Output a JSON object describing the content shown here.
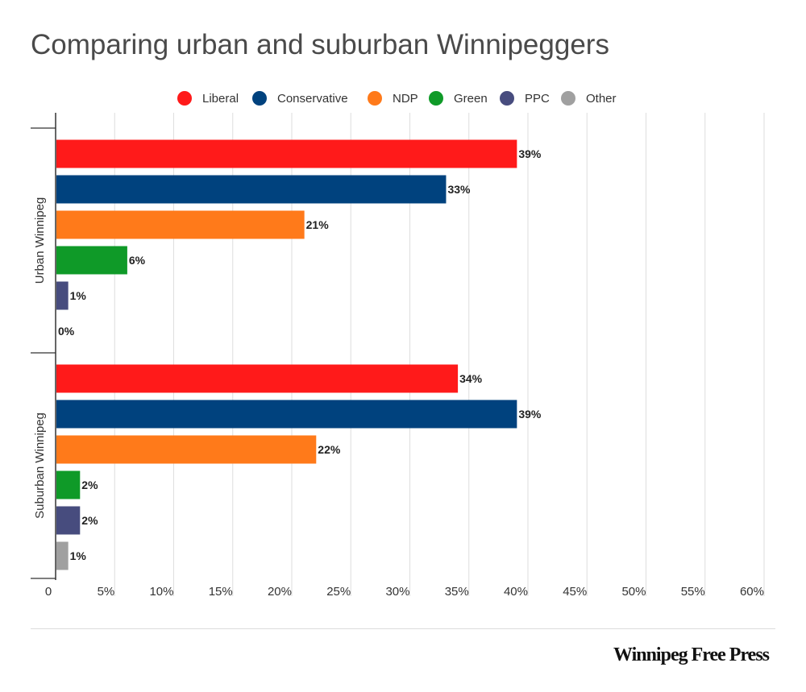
{
  "title": "Comparing urban and suburban Winnipeggers",
  "brand": "Winnipeg Free Press",
  "chart_data": {
    "type": "bar",
    "orientation": "horizontal",
    "title": "Comparing urban and suburban Winnipeggers",
    "categories": [
      "Urban Winnipeg",
      "Suburban Winnipeg"
    ],
    "series": [
      {
        "name": "Liberal",
        "color": "#ff1a1a",
        "values": [
          39,
          34
        ]
      },
      {
        "name": "Conservative",
        "color": "#00427e",
        "values": [
          33,
          39
        ]
      },
      {
        "name": "NDP",
        "color": "#ff7a1a",
        "values": [
          21,
          22
        ]
      },
      {
        "name": "Green",
        "color": "#0f9a28",
        "values": [
          6,
          2
        ]
      },
      {
        "name": "PPC",
        "color": "#474c7e",
        "values": [
          1,
          2
        ]
      },
      {
        "name": "Other",
        "color": "#a0a0a0",
        "values": [
          0,
          1
        ]
      }
    ],
    "data_labels": [
      [
        "39%",
        "33%",
        "21%",
        "6%",
        "1%",
        "0%"
      ],
      [
        "34%",
        "39%",
        "22%",
        "2%",
        "2%",
        "1%"
      ]
    ],
    "x_ticks": [
      "0",
      "5%",
      "10%",
      "15%",
      "20%",
      "25%",
      "30%",
      "35%",
      "40%",
      "45%",
      "50%",
      "55%",
      "60%"
    ],
    "xlim": [
      0,
      60
    ],
    "grid": true,
    "legend_position": "top"
  }
}
